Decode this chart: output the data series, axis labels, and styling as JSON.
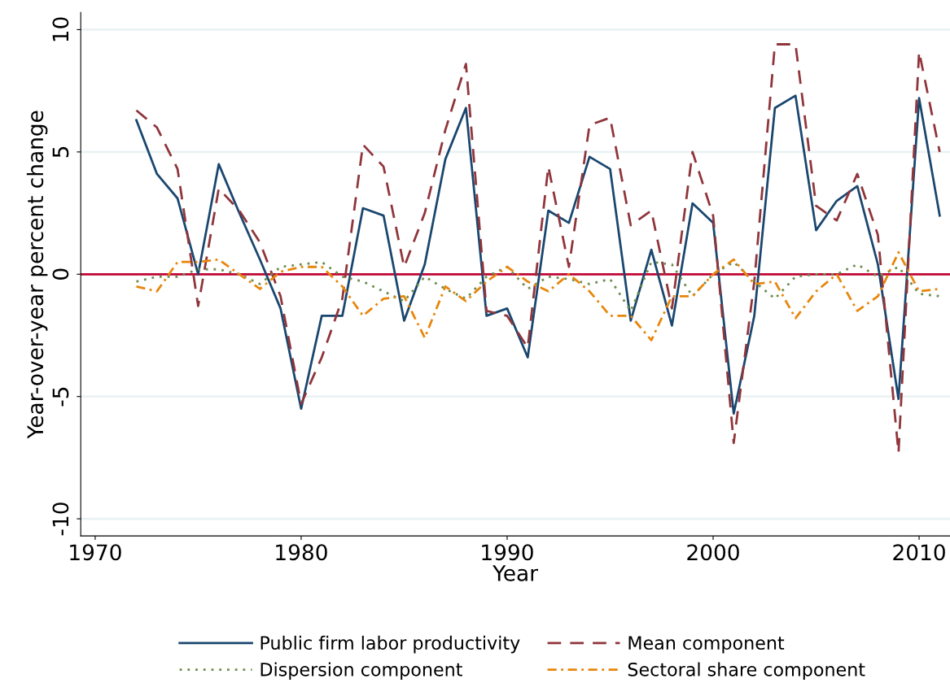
{
  "chart_data": {
    "type": "line",
    "xlabel": "Year",
    "ylabel": "Year-over-year percent change",
    "x": [
      1972,
      1973,
      1974,
      1975,
      1976,
      1977,
      1978,
      1979,
      1980,
      1981,
      1982,
      1983,
      1984,
      1985,
      1986,
      1987,
      1988,
      1989,
      1990,
      1991,
      1992,
      1993,
      1994,
      1995,
      1996,
      1997,
      1998,
      1999,
      2000,
      2001,
      2002,
      2003,
      2004,
      2005,
      2006,
      2007,
      2008,
      2009,
      2010,
      2011
    ],
    "series": [
      {
        "name": "Public firm labor productivity",
        "color": "#1a476f",
        "line_style": "solid",
        "values": [
          6.3,
          4.1,
          3.1,
          0.0,
          4.5,
          2.5,
          0.6,
          -1.4,
          -5.5,
          -1.7,
          -1.7,
          2.7,
          2.4,
          -1.9,
          0.4,
          4.7,
          6.8,
          -1.7,
          -1.4,
          -3.4,
          2.6,
          2.1,
          4.8,
          4.3,
          -1.9,
          1.0,
          -2.1,
          2.9,
          2.1,
          -5.7,
          -1.7,
          6.8,
          7.3,
          1.8,
          3.0,
          3.6,
          0.4,
          -5.1,
          7.2,
          2.4
        ]
      },
      {
        "name": "Mean component",
        "color": "#90353b",
        "line_style": "dashed",
        "values": [
          6.7,
          6.0,
          4.3,
          -1.3,
          3.5,
          2.6,
          1.3,
          -0.9,
          -5.3,
          -3.4,
          -1.0,
          5.3,
          4.4,
          0.3,
          2.5,
          5.9,
          8.6,
          -1.5,
          -1.7,
          -3.0,
          4.4,
          0.3,
          6.1,
          6.4,
          2.0,
          2.6,
          -1.4,
          5.0,
          2.4,
          -6.9,
          -0.3,
          9.4,
          9.4,
          2.8,
          2.2,
          4.1,
          1.6,
          -7.3,
          9.1,
          5.0
        ]
      },
      {
        "name": "Dispersion component",
        "color": "#6b8e4e",
        "line_style": "dotted",
        "values": [
          -0.3,
          -0.1,
          -0.1,
          0.2,
          0.2,
          0.0,
          -0.4,
          0.3,
          0.4,
          0.5,
          -0.1,
          -0.3,
          -0.7,
          -1.1,
          -0.1,
          -0.6,
          -1.0,
          -0.1,
          0.3,
          -0.6,
          -0.1,
          -0.2,
          -0.4,
          -0.2,
          -1.5,
          0.5,
          0.4,
          -0.9,
          0.0,
          0.5,
          -0.3,
          -1.0,
          -0.1,
          0.0,
          0.0,
          0.4,
          -0.1,
          0.3,
          -0.8,
          -0.9
        ]
      },
      {
        "name": "Sectoral share component",
        "color": "#e8860c",
        "line_style": "dashdot",
        "values": [
          -0.5,
          -0.7,
          0.5,
          0.5,
          0.6,
          0.0,
          -0.6,
          0.1,
          0.3,
          0.3,
          -0.5,
          -1.7,
          -1.0,
          -0.9,
          -2.6,
          -0.5,
          -1.1,
          -0.3,
          0.3,
          -0.3,
          -0.7,
          0.0,
          -0.7,
          -1.7,
          -1.7,
          -2.7,
          -0.9,
          -0.9,
          0.0,
          0.6,
          -0.4,
          -0.3,
          -1.8,
          -0.7,
          0.0,
          -1.5,
          -0.9,
          0.9,
          -0.7,
          -0.6
        ]
      }
    ],
    "xlim": [
      1969.3,
      2011.5
    ],
    "xticks": [
      1970,
      1980,
      1990,
      2000,
      2010
    ],
    "ylim": [
      -10.7,
      10.7
    ],
    "yticks": [
      {
        "value": -10,
        "label": "-10"
      },
      {
        "value": -5,
        "label": "-5"
      },
      0,
      5,
      10
    ],
    "ref_lines": [
      {
        "axis": "y",
        "value": 0,
        "color": "#c10534",
        "line_style": "solid"
      }
    ],
    "grid": "y",
    "legend": "bottom",
    "marker": "none"
  }
}
